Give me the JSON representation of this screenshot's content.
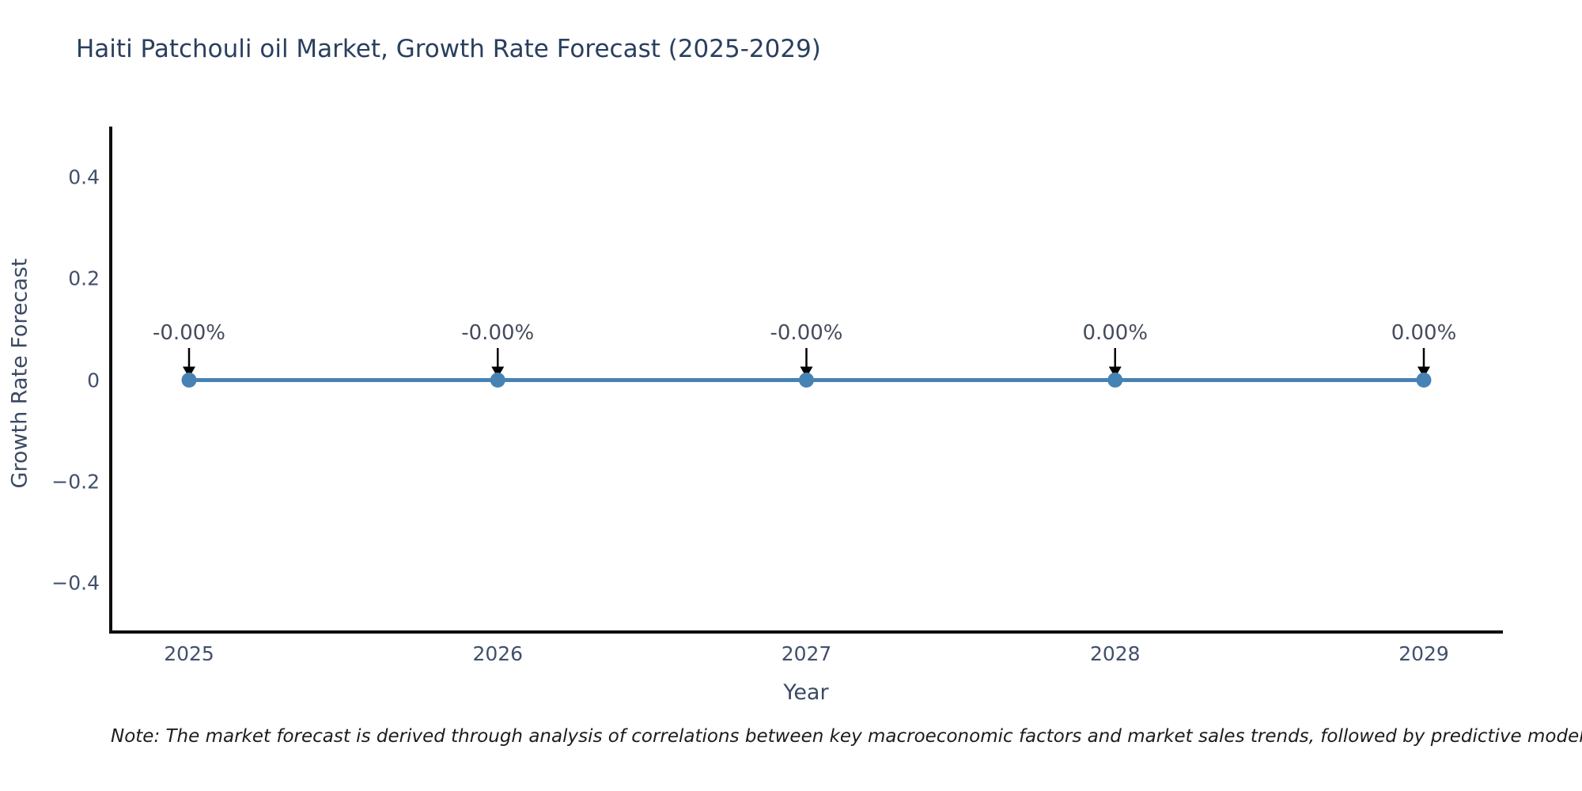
{
  "chart_data": {
    "type": "line",
    "title": "Haiti Patchouli oil Market, Growth Rate Forecast (2025-2029)",
    "xlabel": "Year",
    "ylabel": "Growth Rate Forecast",
    "categories": [
      "2025",
      "2026",
      "2027",
      "2028",
      "2029"
    ],
    "series": [
      {
        "name": "Growth Rate Forecast",
        "values": [
          0,
          0,
          0,
          0,
          0
        ]
      }
    ],
    "point_labels": [
      "-0.00%",
      "-0.00%",
      "-0.00%",
      "0.00%",
      "0.00%"
    ],
    "ylim": [
      -0.5,
      0.5
    ],
    "ytick_values": [
      0.4,
      0.2,
      0,
      -0.2,
      -0.4
    ],
    "ytick_labels": [
      "0.4",
      "0.2",
      "0",
      "−0.2",
      "−0.4"
    ],
    "grid": false,
    "legend_position": "none",
    "colors": {
      "line": "#4682b4",
      "marker": "#4682b4",
      "arrow": "#000000",
      "axis_line": "#0d0d0d",
      "title_text": "#2a3f5f",
      "tick_text": "#42506b",
      "annotation_text": "#444c5c",
      "note_text": "#1c1c1c"
    }
  },
  "note": {
    "text": "Note: The market forecast is derived through analysis of correlations between key macroeconomic factors and market sales trends, followed by predictive modeling to project future sa"
  }
}
